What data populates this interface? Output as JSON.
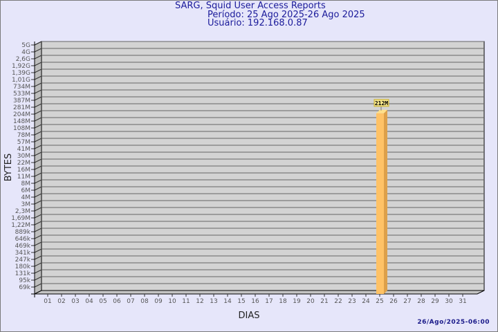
{
  "chart_data": {
    "type": "bar",
    "title": "SARG, Squid User Access Reports",
    "subtitle": [
      "Período: 25 Ago 2025-26 Ago 2025",
      "Usuário: 192.168.0.87"
    ],
    "xlabel": "DIAS",
    "ylabel": "BYTES",
    "yscale": "log",
    "ytick_labels": [
      "5G",
      "4G",
      "2,6G",
      "1,92G",
      "1,39G",
      "1,01G",
      "734M",
      "533M",
      "387M",
      "281M",
      "204M",
      "148M",
      "108M",
      "78M",
      "57M",
      "41M",
      "30M",
      "22M",
      "16M",
      "11M",
      "8M",
      "6M",
      "4M",
      "3M",
      "2,3M",
      "1,69M",
      "1,22M",
      "889k",
      "646k",
      "469k",
      "341k",
      "247k",
      "180k",
      "131k",
      "95k",
      "69k"
    ],
    "ytick_values": [
      5000000000.0,
      4000000000.0,
      2600000000.0,
      1920000000.0,
      1390000000.0,
      1010000000.0,
      734000000.0,
      533000000.0,
      387000000.0,
      281000000.0,
      204000000.0,
      148000000.0,
      108000000.0,
      78000000.0,
      57000000.0,
      41000000.0,
      30000000.0,
      22000000.0,
      16000000.0,
      11000000.0,
      8000000.0,
      6000000.0,
      4000000.0,
      3000000.0,
      2300000.0,
      1690000.0,
      1220000.0,
      889000.0,
      646000.0,
      469000.0,
      341000.0,
      247000.0,
      180000.0,
      131000.0,
      95000.0,
      69000.0
    ],
    "categories": [
      "01",
      "02",
      "03",
      "04",
      "05",
      "06",
      "07",
      "08",
      "09",
      "10",
      "11",
      "12",
      "13",
      "14",
      "15",
      "16",
      "17",
      "18",
      "19",
      "20",
      "21",
      "22",
      "23",
      "24",
      "25",
      "26",
      "27",
      "28",
      "29",
      "30",
      "31"
    ],
    "values": [
      null,
      null,
      null,
      null,
      null,
      null,
      null,
      null,
      null,
      null,
      null,
      null,
      null,
      null,
      null,
      null,
      null,
      null,
      null,
      null,
      null,
      null,
      null,
      null,
      212000000,
      null,
      null,
      null,
      null,
      null,
      null
    ],
    "data_labels": {
      "25": "212M"
    },
    "grid": true,
    "colors": {
      "bar": "#ffc266",
      "bar_side": "#dda04a",
      "bar_top": "#ffe08a",
      "wall": "#d3d3d3",
      "label_bg": "#f5e58a"
    }
  },
  "footer": {
    "timestamp": "26/Ago/2025-06:00"
  }
}
